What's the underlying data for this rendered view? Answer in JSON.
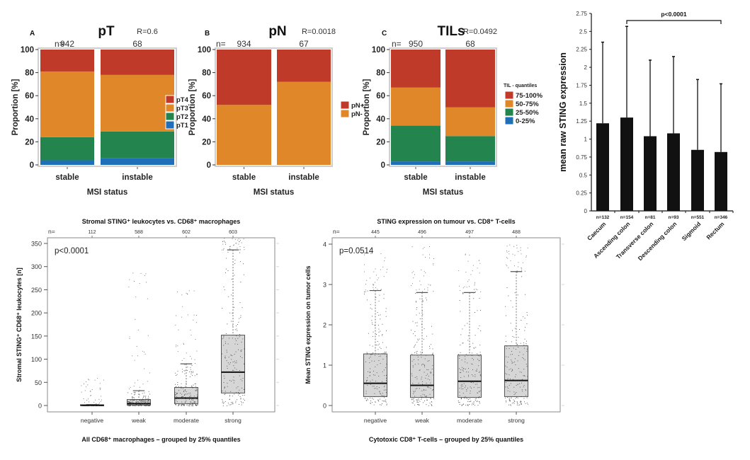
{
  "chart_data": [
    {
      "id": "pT",
      "type": "bar",
      "stacked": true,
      "panel_letter": "A",
      "title": "pT",
      "stat": "R=0.6",
      "n_prefix": "n=",
      "n_values": [
        "942",
        "68"
      ],
      "categories": [
        "stable",
        "instable"
      ],
      "xlabel": "MSI status",
      "ylabel": "Proportion [%]",
      "ylim": [
        0,
        100
      ],
      "yticks": [
        0,
        20,
        40,
        60,
        80,
        100
      ],
      "legend_title": "",
      "legend_position": "right",
      "series": [
        {
          "name": "pT1",
          "color": "#1f6fb8",
          "values": [
            4,
            6
          ]
        },
        {
          "name": "pT2",
          "color": "#23854d",
          "values": [
            20,
            23
          ]
        },
        {
          "name": "pT3",
          "color": "#e0872a",
          "values": [
            57,
            49
          ]
        },
        {
          "name": "pT4",
          "color": "#bf3a28",
          "values": [
            19,
            22
          ]
        }
      ]
    },
    {
      "id": "pN",
      "type": "bar",
      "stacked": true,
      "panel_letter": "B",
      "title": "pN",
      "stat": "R=0.0018",
      "n_prefix": "n=",
      "n_values": [
        "934",
        "67"
      ],
      "categories": [
        "stable",
        "instable"
      ],
      "xlabel": "MSI status",
      "ylabel": "Proportion [%]",
      "ylim": [
        0,
        100
      ],
      "yticks": [
        0,
        20,
        40,
        60,
        80,
        100
      ],
      "legend_title": "",
      "legend_position": "right",
      "series": [
        {
          "name": "pN-",
          "color": "#e0872a",
          "values": [
            52,
            72
          ]
        },
        {
          "name": "pN+",
          "color": "#bf3a28",
          "values": [
            48,
            28
          ]
        }
      ]
    },
    {
      "id": "TILs",
      "type": "bar",
      "stacked": true,
      "panel_letter": "C",
      "title": "TILs",
      "stat": "R=0.0492",
      "n_prefix": "n=",
      "n_values": [
        "950",
        "68"
      ],
      "categories": [
        "stable",
        "instable"
      ],
      "xlabel": "MSI status",
      "ylabel": "Proportion [%]",
      "ylim": [
        0,
        100
      ],
      "yticks": [
        0,
        20,
        40,
        60,
        80,
        100
      ],
      "legend_title": "TIL - quantiles",
      "legend_position": "right",
      "series": [
        {
          "name": "0-25%",
          "color": "#1f6fb8",
          "values": [
            3,
            3
          ]
        },
        {
          "name": "25-50%",
          "color": "#23854d",
          "values": [
            31,
            22
          ]
        },
        {
          "name": "50-75%",
          "color": "#e0872a",
          "values": [
            33,
            25
          ]
        },
        {
          "name": "75-100%",
          "color": "#bf3a28",
          "values": [
            33,
            50
          ]
        }
      ]
    },
    {
      "id": "location",
      "type": "bar",
      "title": "",
      "ylabel": "mean raw STING expression",
      "xlabel": "",
      "ylim": [
        0,
        2.75
      ],
      "yticks": [
        "0",
        "0.25",
        "0.5",
        "0.75",
        "1",
        "1.25",
        "1.5",
        "1.75",
        "2",
        "2.25",
        "2.5",
        "2.75"
      ],
      "categories": [
        "Caecum",
        "Ascending colon",
        "Transverse colon",
        "Descending colon",
        "Sigmoid",
        "Rectum"
      ],
      "n_labels": [
        "n=132",
        "n=154",
        "n=81",
        "n=93",
        "n=551",
        "n=346"
      ],
      "values": [
        1.22,
        1.3,
        1.04,
        1.08,
        0.85,
        0.82
      ],
      "error_upper": [
        2.35,
        2.57,
        2.1,
        2.15,
        1.83,
        1.77
      ],
      "bar_color": "#111111",
      "annotation": {
        "text": "p<0.0001",
        "from": "Ascending colon",
        "to": "Rectum"
      }
    },
    {
      "id": "macrophages",
      "type": "box",
      "title": "Stromal STING⁺ leukocytes vs. CD68⁺ macrophages",
      "xlabel": "All CD68⁺ macrophages – grouped by 25% quantiles",
      "ylabel": "Stromal STING⁺ CD68⁺ leukocytes [n]",
      "ylim": [
        0,
        350
      ],
      "yticks": [
        0,
        50,
        100,
        150,
        200,
        250,
        300,
        350
      ],
      "n_prefix": "n=",
      "n_values": [
        "112",
        "588",
        "602",
        "603"
      ],
      "categories": [
        "negative",
        "weak",
        "moderate",
        "strong"
      ],
      "annotation": "p<0.0001",
      "boxes": [
        {
          "q1": 0,
          "median": 0.5,
          "q3": 1.5,
          "whisker_high": 2,
          "outlier_max": 65
        },
        {
          "q1": 1,
          "median": 4,
          "q3": 13,
          "whisker_high": 32,
          "outlier_max": 300
        },
        {
          "q1": 4,
          "median": 16,
          "q3": 39,
          "whisker_high": 90,
          "outlier_max": 255
        },
        {
          "q1": 27,
          "median": 72,
          "q3": 152,
          "whisker_high": 336,
          "outlier_max": 362
        }
      ]
    },
    {
      "id": "cd8",
      "type": "box",
      "title": "STING expression on tumour vs. CD8⁺ T-cells",
      "xlabel": "Cytotoxic CD8⁺ T-cells – grouped by 25% quantiles",
      "ylabel": "Mean STING expression on tumor cells",
      "ylim": [
        0,
        4
      ],
      "yticks": [
        0,
        1,
        2,
        3,
        4
      ],
      "n_prefix": "n=",
      "n_values": [
        "445",
        "496",
        "497",
        "488"
      ],
      "categories": [
        "negative",
        "weak",
        "moderate",
        "strong"
      ],
      "annotation": "p=0.0514",
      "boxes": [
        {
          "q1": 0.22,
          "median": 0.55,
          "q3": 1.28,
          "whisker_high": 2.85,
          "outlier_max": 3.85
        },
        {
          "q1": 0.2,
          "median": 0.5,
          "q3": 1.25,
          "whisker_high": 2.8,
          "outlier_max": 3.95
        },
        {
          "q1": 0.2,
          "median": 0.6,
          "q3": 1.25,
          "whisker_high": 2.8,
          "outlier_max": 3.8
        },
        {
          "q1": 0.22,
          "median": 0.62,
          "q3": 1.48,
          "whisker_high": 3.32,
          "outlier_max": 4.05
        }
      ]
    }
  ]
}
